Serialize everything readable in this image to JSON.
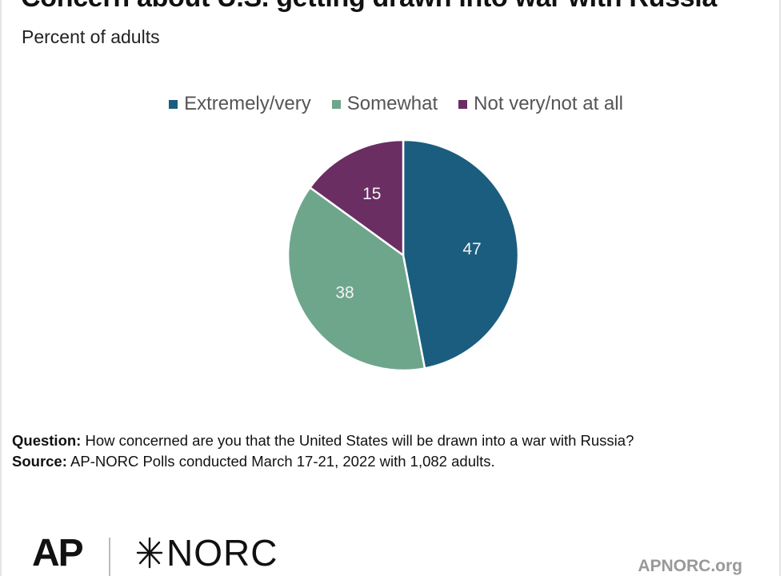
{
  "header": {
    "title": "Concern about U.S. getting drawn into war with Russia",
    "subtitle": "Percent of adults"
  },
  "chart_data": {
    "type": "pie",
    "title": "Concern about U.S. getting drawn into war with Russia",
    "subtitle": "Percent of adults",
    "legend_position": "top",
    "categories": [
      "Extremely/very",
      "Somewhat",
      "Not very/not at all"
    ],
    "values": [
      47,
      38,
      15
    ],
    "labels": [
      "47",
      "38",
      "15"
    ],
    "colors": [
      "#1b5d7e",
      "#6ea68c",
      "#6a2e63"
    ],
    "start": "12 o'clock, clockwise"
  },
  "notes": {
    "question_label": "Question:",
    "question_text": " How concerned are you that the United States will be drawn into a war with Russia?",
    "source_label": "Source:",
    "source_text": " AP-NORC Polls conducted March 17-21, 2022 with 1,082 adults."
  },
  "footer": {
    "ap_logo": "AP",
    "norc_logo": "NORC",
    "site": "APNORC.org"
  }
}
